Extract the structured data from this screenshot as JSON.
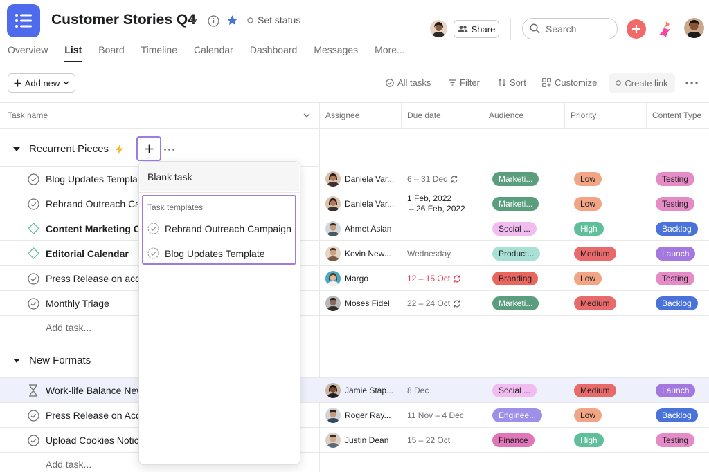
{
  "project": {
    "title": "Customer Stories Q4",
    "set_status": "Set status"
  },
  "header": {
    "share": "Share",
    "search_placeholder": "Search"
  },
  "tabs": [
    "Overview",
    "List",
    "Board",
    "Timeline",
    "Calendar",
    "Dashboard",
    "Messages",
    "More..."
  ],
  "toolbar": {
    "add_new": "Add new",
    "all_tasks": "All tasks",
    "filter": "Filter",
    "sort": "Sort",
    "customize": "Customize",
    "create_link": "Create link"
  },
  "columns": {
    "task_name": "Task name",
    "assignee": "Assignee",
    "due_date": "Due date",
    "audience": "Audience",
    "priority": "Priority",
    "content_type": "Content Type"
  },
  "sections": [
    {
      "name": "Recurrent Pieces",
      "add_task": "Add task...",
      "tasks": [
        {
          "name": "Blog Updates Template",
          "assignee": "Daniela Var...",
          "due": "6 – 31 Dec",
          "audience": "Marketi...",
          "priority": "Low",
          "content_type": "Testing"
        },
        {
          "name": "Rebrand Outreach Campaign",
          "assignee": "Daniela Var...",
          "due1": "1 Feb, 2022",
          "due2": "– 26 Feb, 2022",
          "audience": "Marketi...",
          "priority": "Low",
          "content_type": "Testing"
        },
        {
          "name": "Content Marketing Calendar",
          "assignee": "Ahmet Aslan",
          "due": "",
          "audience": "Social ...",
          "priority": "High",
          "content_type": "Backlog"
        },
        {
          "name": "Editorial Calendar",
          "assignee": "Kevin New...",
          "due": "Wednesday",
          "audience": "Product...",
          "priority": "Medium",
          "content_type": "Launch"
        },
        {
          "name": "Press Release on acquisition",
          "assignee": "Margo",
          "due": "12 – 15 Oct",
          "audience": "Branding",
          "priority": "Low",
          "content_type": "Testing"
        },
        {
          "name": "Monthly Triage",
          "assignee": "Moses Fidel",
          "due": "22 – 24 Oct",
          "audience": "Marketi...",
          "priority": "Medium",
          "content_type": "Backlog"
        }
      ]
    },
    {
      "name": "New Formats",
      "add_task": "Add task...",
      "tasks": [
        {
          "name": "Work-life Balance Newsletter",
          "assignee": "Jamie Stap...",
          "due": "8 Dec",
          "audience": "Social ...",
          "priority": "Medium",
          "content_type": "Launch"
        },
        {
          "name": "Press Release on Acquisition",
          "assignee": "Roger Ray...",
          "due": "11 Nov – 4 Dec",
          "audience": "Enginee...",
          "priority": "Low",
          "content_type": "Backlog"
        },
        {
          "name": "Upload Cookies Notice",
          "assignee": "Justin Dean",
          "due": "15 – 22 Oct",
          "audience": "Finance",
          "priority": "High",
          "content_type": "Testing"
        }
      ]
    }
  ],
  "dropdown": {
    "blank_task": "Blank task",
    "templates_heading": "Task templates",
    "templates": [
      "Rebrand Outreach Campaign",
      "Blog Updates Template"
    ]
  },
  "colors": {
    "accent_purple": "#9d7ce0",
    "brand_blue": "#4f6bed",
    "red_plus": "#f06a6a",
    "marketing": "#5a9e7e",
    "low": "#f1a585",
    "testing": "#e58bc6",
    "high": "#5ebf9a",
    "backlog": "#4a73d9",
    "medium": "#e96a6a",
    "launch": "#a379e0",
    "social": "#f1bdf0",
    "product": "#a8e0d6",
    "branding": "#e8665e",
    "engineering": "#9e8fe8",
    "finance": "#e076b8"
  }
}
